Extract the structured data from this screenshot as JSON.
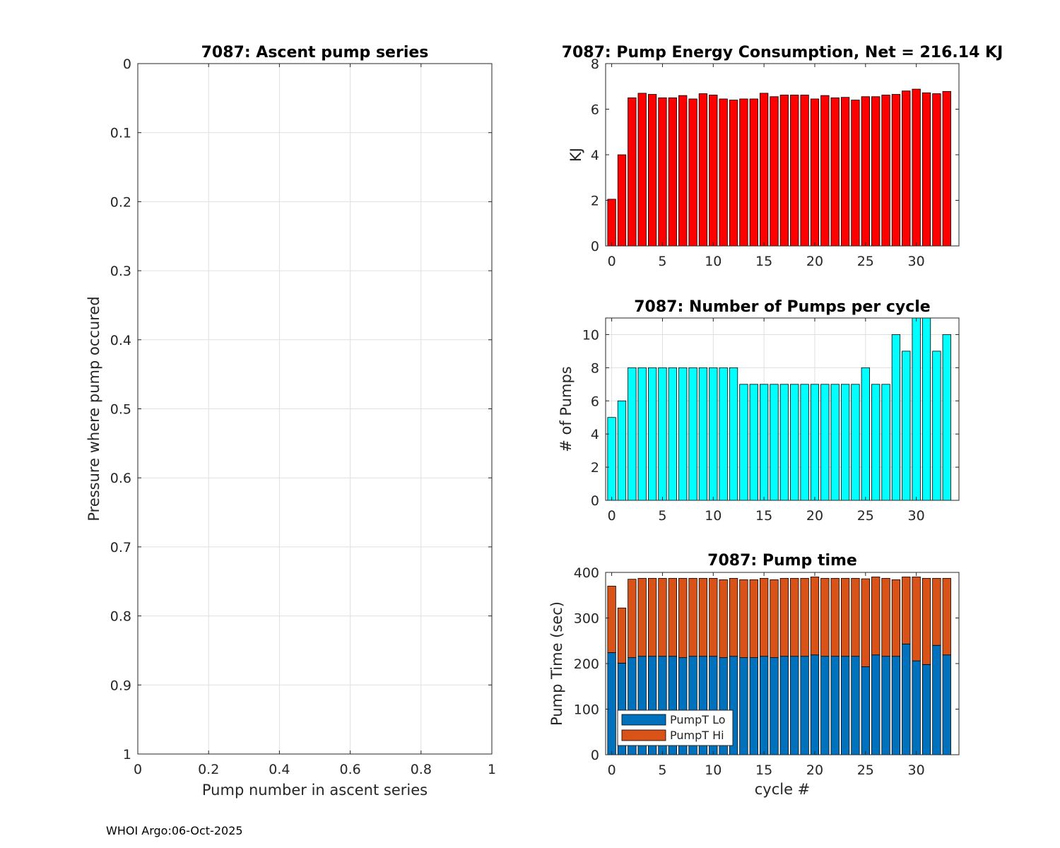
{
  "footer": "WHOI Argo:06-Oct-2025",
  "chart_data": [
    {
      "id": "ascent",
      "type": "line",
      "title": "7087: Ascent pump series",
      "xlabel": "Pump number in ascent series",
      "ylabel": "Pressure where pump occured",
      "xlim": [
        0,
        1
      ],
      "ylim": [
        0,
        1
      ],
      "y_reversed": true,
      "xticks": [
        0,
        0.2,
        0.4,
        0.6,
        0.8,
        1
      ],
      "xtick_labels": [
        "0",
        "0.2",
        "0.4",
        "0.6",
        "0.8",
        "1"
      ],
      "yticks": [
        0,
        0.1,
        0.2,
        0.3,
        0.4,
        0.5,
        0.6,
        0.7,
        0.8,
        0.9,
        1
      ],
      "ytick_labels": [
        "0",
        "0.1",
        "0.2",
        "0.3",
        "0.4",
        "0.5",
        "0.6",
        "0.7",
        "0.8",
        "0.9",
        "1"
      ],
      "grid": true,
      "series": []
    },
    {
      "id": "energy",
      "type": "bar",
      "title": "7087: Pump Energy Consumption,  Net = 216.14 KJ",
      "xlabel": "",
      "ylabel": "KJ",
      "xlim": [
        -0.6,
        34.2
      ],
      "ylim": [
        0,
        8
      ],
      "xticks": [
        0,
        5,
        10,
        15,
        20,
        25,
        30
      ],
      "yticks": [
        0,
        2,
        4,
        6,
        8
      ],
      "grid": false,
      "color": "#ff0000",
      "x": [
        0,
        1,
        2,
        3,
        4,
        5,
        6,
        7,
        8,
        9,
        10,
        11,
        12,
        13,
        14,
        15,
        16,
        17,
        18,
        19,
        20,
        21,
        22,
        23,
        24,
        25,
        26,
        27,
        28,
        29,
        30,
        31,
        32,
        33
      ],
      "values": [
        2.05,
        4.0,
        6.5,
        6.7,
        6.65,
        6.5,
        6.5,
        6.6,
        6.45,
        6.68,
        6.62,
        6.45,
        6.4,
        6.45,
        6.45,
        6.7,
        6.55,
        6.62,
        6.62,
        6.62,
        6.45,
        6.6,
        6.5,
        6.52,
        6.4,
        6.55,
        6.55,
        6.62,
        6.65,
        6.8,
        6.88,
        6.72,
        6.68,
        6.78
      ]
    },
    {
      "id": "pumps",
      "type": "bar",
      "title": "7087: Number of Pumps per cycle",
      "xlabel": "",
      "ylabel": "# of Pumps",
      "xlim": [
        -0.6,
        34.2
      ],
      "ylim": [
        0,
        11
      ],
      "xticks": [
        0,
        5,
        10,
        15,
        20,
        25,
        30
      ],
      "yticks": [
        0,
        2,
        4,
        6,
        8,
        10
      ],
      "grid": true,
      "color": "#00ffff",
      "x": [
        0,
        1,
        2,
        3,
        4,
        5,
        6,
        7,
        8,
        9,
        10,
        11,
        12,
        13,
        14,
        15,
        16,
        17,
        18,
        19,
        20,
        21,
        22,
        23,
        24,
        25,
        26,
        27,
        28,
        29,
        30,
        31,
        32,
        33
      ],
      "values": [
        5,
        6,
        8,
        8,
        8,
        8,
        8,
        8,
        8,
        8,
        8,
        8,
        8,
        7,
        7,
        7,
        7,
        7,
        7,
        7,
        7,
        7,
        7,
        7,
        7,
        8,
        7,
        7,
        10,
        9,
        11,
        11,
        9,
        10
      ]
    },
    {
      "id": "pumptime",
      "type": "bar",
      "stacked": true,
      "title": "7087: Pump time",
      "xlabel": "cycle #",
      "ylabel": "Pump Time (sec)",
      "xlim": [
        -0.6,
        34.2
      ],
      "ylim": [
        0,
        400
      ],
      "xticks": [
        0,
        5,
        10,
        15,
        20,
        25,
        30
      ],
      "yticks": [
        0,
        100,
        200,
        300,
        400
      ],
      "grid": false,
      "legend_location": "bottom-left",
      "x": [
        0,
        1,
        2,
        3,
        4,
        5,
        6,
        7,
        8,
        9,
        10,
        11,
        12,
        13,
        14,
        15,
        16,
        17,
        18,
        19,
        20,
        21,
        22,
        23,
        24,
        25,
        26,
        27,
        28,
        29,
        30,
        31,
        32,
        33
      ],
      "series": [
        {
          "name": "PumpT Lo",
          "color": "#0072bd",
          "values": [
            224,
            201,
            213,
            216,
            216,
            216,
            216,
            213,
            216,
            216,
            216,
            213,
            216,
            213,
            213,
            216,
            213,
            216,
            216,
            216,
            219,
            216,
            216,
            216,
            216,
            193,
            219,
            216,
            216,
            243,
            206,
            198,
            240,
            219
          ]
        },
        {
          "name": "PumpT Hi",
          "color": "#d95319",
          "values": [
            146,
            121,
            172,
            171,
            171,
            171,
            171,
            174,
            171,
            171,
            171,
            171,
            171,
            171,
            171,
            171,
            171,
            171,
            171,
            171,
            171,
            171,
            171,
            171,
            171,
            193,
            171,
            171,
            168,
            147,
            184,
            189,
            147,
            168
          ]
        }
      ]
    }
  ]
}
